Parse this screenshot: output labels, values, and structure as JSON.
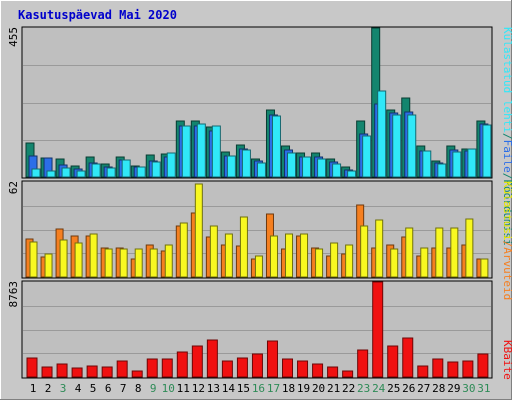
{
  "chart_data": [
    {
      "type": "bar",
      "panel": "hits",
      "title": "Kasutuspäevad Mai 2020",
      "ymax_label": "455",
      "ylim": [
        0,
        455
      ],
      "categories": [
        "1",
        "2",
        "3",
        "4",
        "5",
        "6",
        "7",
        "8",
        "9",
        "10",
        "11",
        "12",
        "13",
        "14",
        "15",
        "16",
        "17",
        "18",
        "19",
        "20",
        "21",
        "22",
        "23",
        "24",
        "25",
        "26",
        "27",
        "28",
        "29",
        "30",
        "31"
      ],
      "weekend_days": [
        "3",
        "9",
        "10",
        "16",
        "17",
        "23",
        "24",
        "30",
        "31"
      ],
      "legend": [
        {
          "label": "Pöördumisi",
          "color": "#13856e"
        },
        {
          "label": "Faile",
          "color": "#2b6ee8"
        },
        {
          "label": "Külastatud lehti",
          "color": "#30e8f8"
        }
      ],
      "series": [
        {
          "name": "Pöördumisi",
          "color": "#13856e",
          "values": [
            104,
            57,
            55,
            33,
            62,
            40,
            62,
            35,
            66,
            70,
            172,
            172,
            154,
            77,
            98,
            55,
            206,
            95,
            72,
            72,
            55,
            30,
            172,
            455,
            206,
            240,
            95,
            50,
            95,
            87,
            170
          ]
        },
        {
          "name": "Faile",
          "color": "#2b6ee8",
          "values": [
            65,
            57,
            38,
            23,
            44,
            30,
            52,
            31,
            48,
            60,
            156,
            156,
            140,
            65,
            85,
            48,
            190,
            82,
            62,
            62,
            47,
            22,
            131,
            224,
            196,
            200,
            80,
            44,
            82,
            80,
            162
          ]
        },
        {
          "name": "Külastatud lehti",
          "color": "#30e8f8",
          "values": [
            25,
            19,
            27,
            17,
            41,
            28,
            52,
            32,
            46,
            72,
            156,
            162,
            156,
            64,
            83,
            44,
            186,
            74,
            60,
            55,
            40,
            17,
            125,
            262,
            190,
            190,
            80,
            40,
            77,
            87,
            160
          ]
        }
      ]
    },
    {
      "type": "bar",
      "panel": "visits",
      "ymax_label": "62",
      "ylim": [
        0,
        62
      ],
      "legend": [
        {
          "label": "Arvuteid",
          "color": "#f57f20"
        },
        {
          "label": "Külastusi",
          "color": "#f8f820"
        }
      ],
      "series": [
        {
          "name": "Arvuteid",
          "color": "#f57f20",
          "values": [
            25,
            13,
            31,
            27,
            27,
            19,
            19,
            12,
            21,
            17,
            33,
            42,
            26,
            21,
            20,
            12,
            41,
            18,
            27,
            19,
            14,
            15,
            47,
            19,
            21,
            26,
            14,
            19,
            19,
            21,
            12
          ]
        },
        {
          "name": "Külastusi",
          "color": "#f8f820",
          "values": [
            23,
            15,
            24,
            22,
            28,
            18,
            18,
            18,
            18,
            21,
            35,
            61,
            33,
            28,
            39,
            14,
            27,
            28,
            28,
            18,
            22,
            21,
            33,
            37,
            18,
            32,
            19,
            32,
            32,
            38,
            12
          ]
        }
      ]
    },
    {
      "type": "bar",
      "panel": "traffic",
      "ymax_label": "8763",
      "ylim": [
        0,
        8763
      ],
      "legend": [
        {
          "label": "KBaite",
          "color": "#f01010"
        }
      ],
      "series": [
        {
          "name": "KBaite",
          "color": "#f01010",
          "values": [
            1778,
            954,
            1201,
            797,
            1045,
            954,
            1519,
            557,
            1640,
            1640,
            2306,
            2870,
            3398,
            1519,
            1778,
            2138,
            3327,
            1640,
            1519,
            1201,
            954,
            557,
            2462,
            8763,
            2870,
            3623,
            1045,
            1640,
            1406,
            1519,
            2138
          ]
        }
      ]
    }
  ]
}
